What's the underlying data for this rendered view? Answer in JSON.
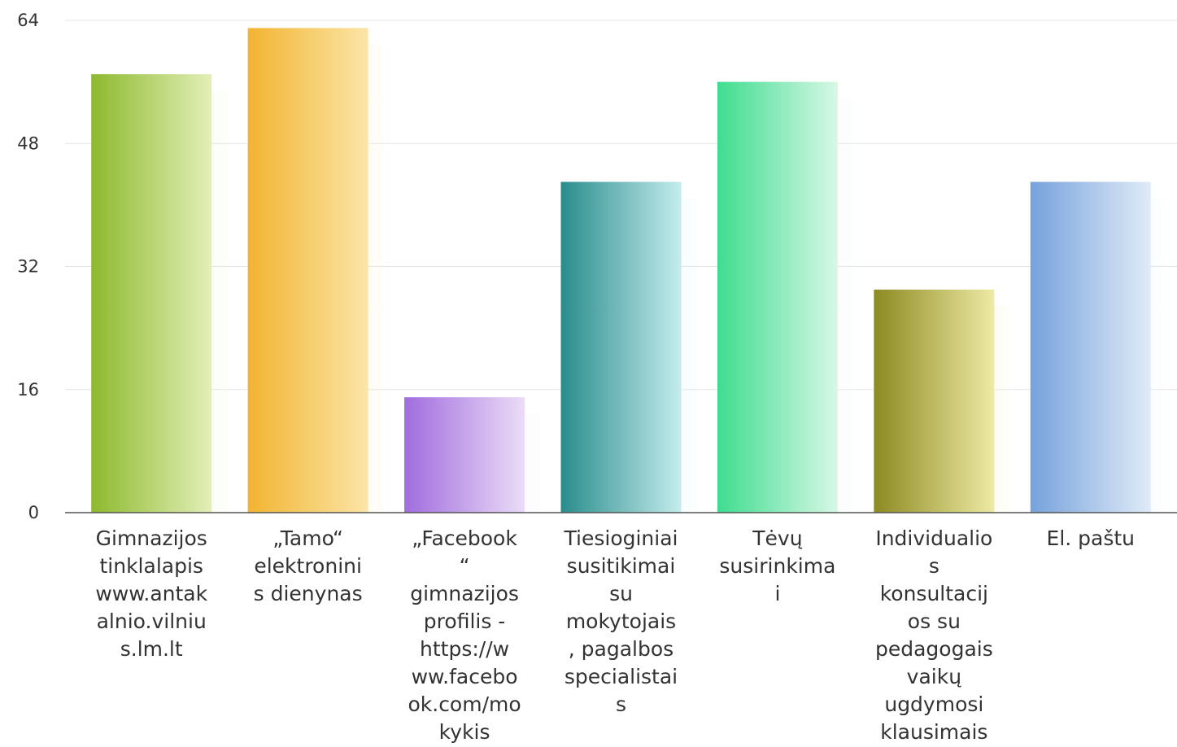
{
  "chart_data": {
    "type": "bar",
    "categories": [
      "Gimnazijos tinklalapis www.antakalnio.vilnius.lm.lt",
      "„Tamo“ elektroninis dienynas",
      "„Facebook“ gimnazijos profilis - https://www.facebook.com/mokykis",
      "Tiesioginiai susitikimai su mokytojais, pagalbos specialistais",
      "Tėvų susirinkimai",
      "Individualios konsultacijos su pedagogais vaikų ugdymosi klausimais",
      "El. paštu"
    ],
    "category_label_lines": [
      [
        "Gimnazijos",
        "tinklalapis",
        "www.antak",
        "alnio.vilniu",
        "s.lm.lt"
      ],
      [
        "„Tamo“",
        "elektronini",
        "s dienynas"
      ],
      [
        "„Facebook",
        "“",
        "gimnazijos",
        "profilis -",
        "https://w",
        "ww.facebo",
        "ok.com/mo",
        "kykis"
      ],
      [
        "Tiesioginiai",
        "susitikimai",
        "su",
        "mokytojais",
        ", pagalbos",
        "specialistai",
        "s"
      ],
      [
        "Tėvų",
        "susirinkima",
        "i"
      ],
      [
        "Individualio",
        "s",
        "konsultacij",
        "os su",
        "pedagogais",
        "vaikų",
        "ugdymosi",
        "klausimais"
      ],
      [
        "El. paštu"
      ]
    ],
    "values": [
      57,
      63,
      15,
      43,
      56,
      29,
      43
    ],
    "ylim": [
      0,
      64
    ],
    "yticks": [
      "0",
      "16",
      "32",
      "48",
      "64"
    ],
    "colors": [
      [
        "#8db92e",
        "#e3efb8"
      ],
      [
        "#f2b431",
        "#fbe5a8"
      ],
      [
        "#a06dde",
        "#ebdcf7"
      ],
      [
        "#2a8c8c",
        "#c4ecec"
      ],
      [
        "#3fdc8f",
        "#d8f8e6"
      ],
      [
        "#8c8a22",
        "#eeeaa4"
      ],
      [
        "#76a2dc",
        "#e0ebf8"
      ]
    ],
    "grid": true,
    "legend": "none"
  }
}
